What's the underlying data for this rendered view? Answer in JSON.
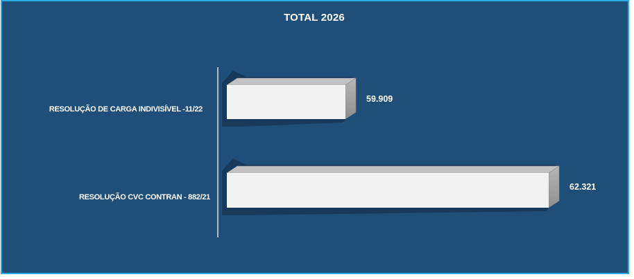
{
  "chart_data": {
    "type": "bar",
    "orientation": "horizontal",
    "style": "3d-cylinder-box-with-shadow",
    "title": "TOTAL 2026",
    "categories": [
      "RESOLUÇÃO DE CARGA INDIVISÍVEL -11/22",
      "RESOLUÇÃO CVC CONTRAN - 882/21"
    ],
    "values": [
      59909,
      62321
    ],
    "value_labels": [
      "59.909",
      "62.321"
    ],
    "xlim_estimate": [
      58500,
      63300
    ],
    "xlabel": "",
    "ylabel": "",
    "legend": "none",
    "grid": "off",
    "data_labels_position": "outside-end"
  },
  "colors": {
    "background": "#1F4E78",
    "border": "#29A9E0",
    "axis_line": "#A9BCCB",
    "bar_front": "#F2F2F2",
    "bar_front_highlight": "#FDFDFD",
    "bar_top": "#C2C2C2",
    "bar_side_light": "#B6B6B6",
    "bar_side_dark": "#8F8F8F",
    "shadow": "#18395A",
    "text": "#FFFFFF"
  }
}
